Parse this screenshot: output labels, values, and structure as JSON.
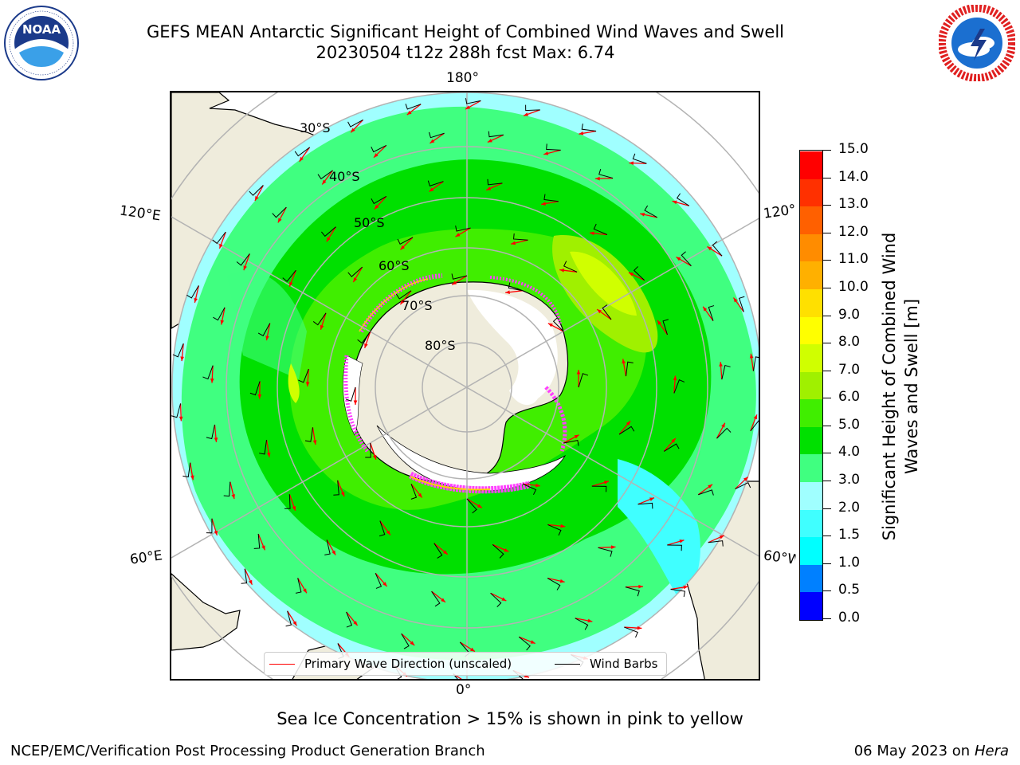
{
  "header": {
    "title_line1": "GEFS MEAN Antarctic Significant Height of Combined Wind Waves and Swell",
    "title_line2": "20230504 t12z 288h fcst   Max: 6.74"
  },
  "map": {
    "longitude_labels": {
      "top": "180°",
      "bottom": "0°",
      "upper_left": "120°E",
      "upper_right": "120°W",
      "lower_left": "60°E",
      "lower_right": "60°W"
    },
    "latitude_labels": [
      "30°S",
      "40°S",
      "50°S",
      "60°S",
      "70°S",
      "80°S"
    ],
    "colors": {
      "land": "#efecdc",
      "ice_shelf": "#ffffff",
      "grid": "#b3b3b3",
      "wave_arrow": "#ff0000",
      "wind_barb": "#000000"
    }
  },
  "legend": {
    "wave_direction": "Primary Wave Direction (unscaled)",
    "wind_barbs": "Wind Barbs"
  },
  "colorbar": {
    "title": "Significant Height of Combined Wind Waves and Swell [m]",
    "ticks": [
      "0.0",
      "0.5",
      "1.0",
      "1.5",
      "2.0",
      "3.0",
      "4.0",
      "5.0",
      "6.0",
      "7.0",
      "8.0",
      "9.0",
      "10.0",
      "11.0",
      "12.0",
      "13.0",
      "14.0",
      "15.0"
    ],
    "colors": [
      "#0000ff",
      "#0080ff",
      "#00ffff",
      "#40ffff",
      "#a0ffff",
      "#40ff80",
      "#00e000",
      "#40ee00",
      "#a0f000",
      "#d0ff00",
      "#ffff00",
      "#ffe000",
      "#ffb000",
      "#ff8c00",
      "#ff6000",
      "#ff3000",
      "#ff0000"
    ]
  },
  "caption": "Sea Ice Concentration > 15% is shown in pink to yellow",
  "footer": {
    "left": "NCEP/EMC/Verification Post Processing Product Generation Branch",
    "date": "06 May 2023 on",
    "host": "Hera"
  },
  "logos": {
    "noaa_text": "NOAA"
  }
}
